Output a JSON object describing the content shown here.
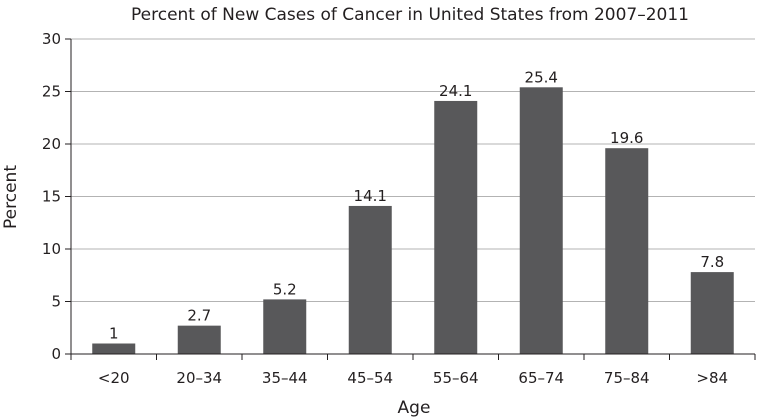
{
  "chart_data": {
    "type": "bar",
    "title": "Percent of New Cases of Cancer in United States from 2007–2011",
    "xlabel": "Age",
    "ylabel": "Percent",
    "categories": [
      "<20",
      "20–34",
      "35–44",
      "45–54",
      "55–64",
      "65–74",
      "75–84",
      ">84"
    ],
    "values": [
      1,
      2.7,
      5.2,
      14.1,
      24.1,
      25.4,
      19.6,
      7.8
    ],
    "data_labels": [
      "1",
      "2.7",
      "5.2",
      "14.1",
      "24.1",
      "25.4",
      "19.6",
      "7.8"
    ],
    "ylim": [
      0,
      30
    ],
    "yticks": [
      "0",
      "5",
      "10",
      "15",
      "20",
      "25",
      "30"
    ],
    "grid": true,
    "legend": "none",
    "colors": {
      "bar": "#58585a",
      "grid": "#b3b3b3",
      "axis": "#231f20"
    }
  }
}
